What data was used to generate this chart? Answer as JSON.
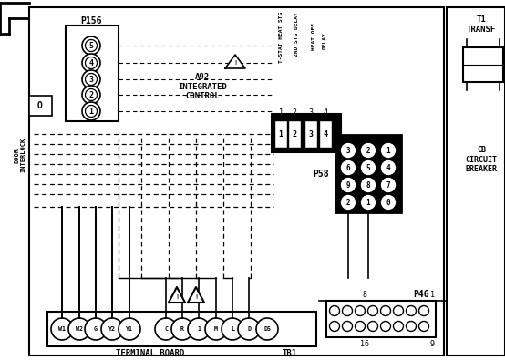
{
  "bg_color": "#ffffff",
  "fg_color": "#000000",
  "p156_pins": [
    "5",
    "4",
    "3",
    "2",
    "1"
  ],
  "a92_label": "A92\nINTEGRATED\nCONTROL",
  "relay_labels": [
    "T-STAT HEAT STG",
    "2ND STG DELAY",
    "HEAT OFF\nDELAY"
  ],
  "relay_pin_nums": [
    "1",
    "2",
    "3",
    "4"
  ],
  "p58_label": "P58",
  "p58_pins": [
    [
      "3",
      "2",
      "1"
    ],
    [
      "6",
      "5",
      "4"
    ],
    [
      "9",
      "8",
      "7"
    ],
    [
      "2",
      "1",
      "0"
    ]
  ],
  "p46_label": "P46",
  "terminal_labels": [
    "W1",
    "W2",
    "G",
    "Y2",
    "Y1",
    "C",
    "R",
    "1",
    "M",
    "L",
    "D",
    "DS"
  ],
  "terminal_board_label": "TERMINAL BOARD",
  "tb1_label": "TB1",
  "t1_label": "T1\nTRANSF",
  "cb_label": "CB\nCIRCUIT\nBREAKER"
}
